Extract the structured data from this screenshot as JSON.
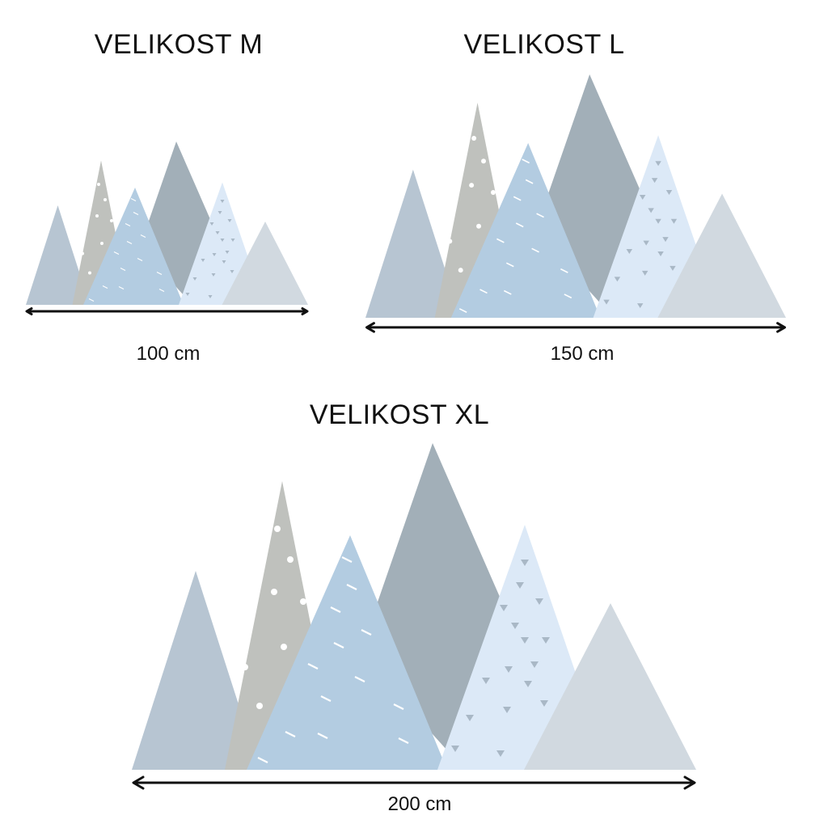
{
  "colors": {
    "mountain_blue_gray": "#b7c5d2",
    "mountain_gray": "#bfc1bd",
    "mountain_slate": "#a2afb8",
    "mountain_light_blue": "#b3cce1",
    "mountain_pale_blue": "#dce9f7",
    "mountain_light_gray": "#d1d9e0",
    "arrow": "#111111"
  },
  "sizes": [
    {
      "title": "VELIKOST M",
      "width_label": "100 cm"
    },
    {
      "title": "VELIKOST L",
      "width_label": "150 cm"
    },
    {
      "title": "VELIKOST XL",
      "width_label": "200 cm"
    }
  ]
}
